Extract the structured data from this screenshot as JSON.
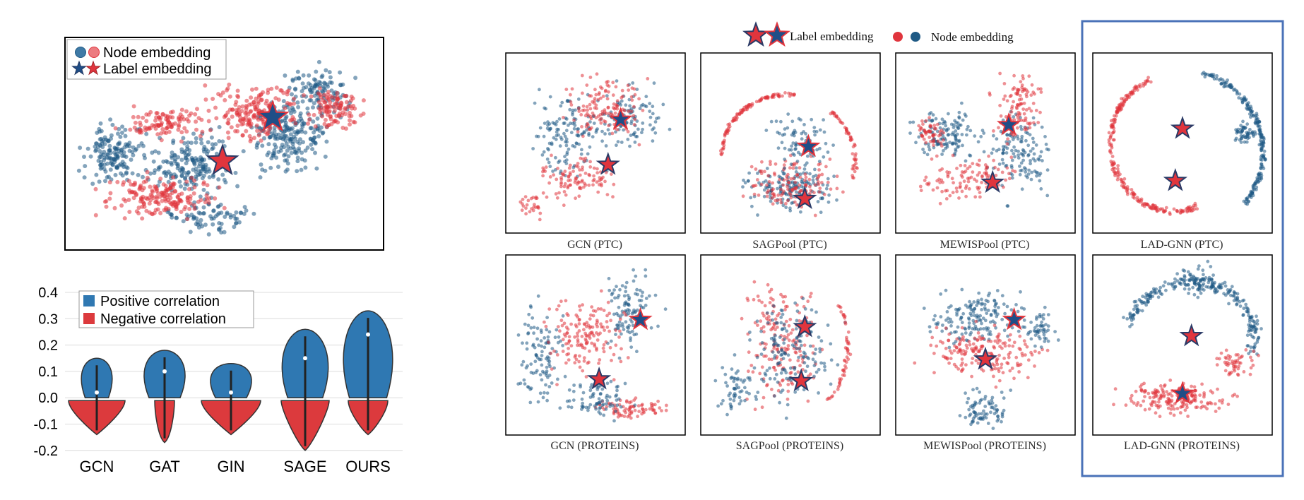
{
  "colors": {
    "blue": "#1f5a85",
    "red": "#e0353d",
    "violin_blue": "#2f78b2",
    "violin_red": "#dc3a3d",
    "frame": "#4a72b8"
  },
  "left_scatter": {
    "legend": {
      "node": "Node embedding",
      "label": "Label embedding"
    }
  },
  "violin": {
    "chart_data": {
      "type": "violin",
      "categories": [
        "GCN",
        "GAT",
        "GIN",
        "SAGE",
        "OURS"
      ],
      "ylim": [
        -0.2,
        0.4
      ],
      "yticks": [
        "0.4",
        "0.3",
        "0.2",
        "0.1",
        "0.0",
        "-0.1",
        "-0.2"
      ],
      "grid": true,
      "legend_position": "top-left",
      "series": [
        {
          "name": "Positive correlation",
          "color": "#2f78b2",
          "ranges": [
            [
              0.0,
              0.15
            ],
            [
              0.02,
              0.18
            ],
            [
              0.0,
              0.13
            ],
            [
              0.0,
              0.26
            ],
            [
              0.0,
              0.33
            ]
          ],
          "medians": [
            0.02,
            0.1,
            0.02,
            0.15,
            0.24
          ]
        },
        {
          "name": "Negative correlation",
          "color": "#dc3a3d",
          "ranges": [
            [
              -0.14,
              0.0
            ],
            [
              -0.17,
              0.0
            ],
            [
              -0.14,
              0.0
            ],
            [
              -0.2,
              0.0
            ],
            [
              -0.14,
              0.0
            ]
          ],
          "medians": [
            -0.05,
            -0.08,
            -0.04,
            -0.04,
            -0.03
          ]
        }
      ]
    }
  },
  "panels": {
    "legend": {
      "label": "Label embedding",
      "node": "Node embedding"
    },
    "captions": [
      "GCN (PTC)",
      "SAGPool (PTC)",
      "MEWISPool (PTC)",
      "LAD-GNN (PTC)",
      "GCN (PROTEINS)",
      "SAGPool (PROTEINS)",
      "MEWISPool (PROTEINS)",
      "LAD-GNN (PROTEINS)"
    ]
  }
}
